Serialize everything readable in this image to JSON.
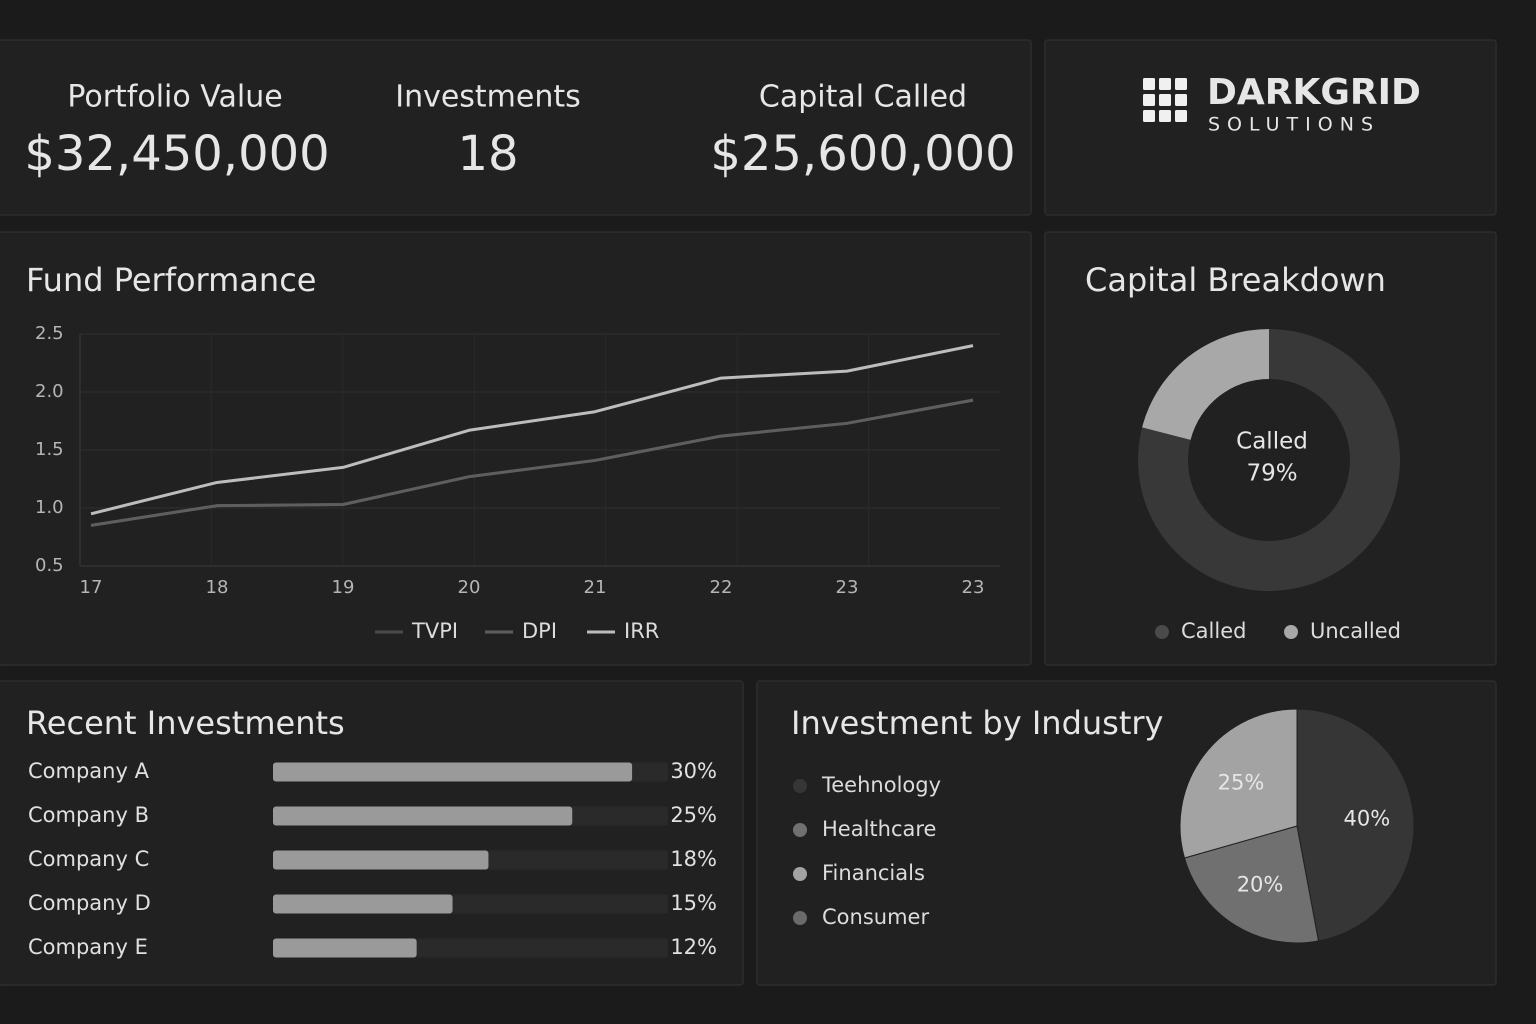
{
  "kpis": [
    {
      "label": "Portfolio Value",
      "value": "$32,450,000"
    },
    {
      "label": "Investments",
      "value": "18"
    },
    {
      "label": "Capital Called",
      "value": "$25,600,000"
    }
  ],
  "brand": {
    "name": "DARKGRID",
    "tagline": "SOLUTIONS"
  },
  "chart_data": [
    {
      "type": "line",
      "title": "Fund Performance",
      "categories": [
        "17",
        "18",
        "19",
        "20",
        "21",
        "22",
        "23",
        "23"
      ],
      "series": [
        {
          "name": "TVPI",
          "color": "#4a4a4a",
          "values": [
            0.85,
            1.02,
            1.03,
            1.27,
            1.41,
            1.62,
            1.73,
            1.93
          ]
        },
        {
          "name": "DPI",
          "color": "#5e5e5e",
          "values": [
            0.85,
            1.02,
            1.03,
            1.27,
            1.41,
            1.62,
            1.73,
            1.93
          ]
        },
        {
          "name": "IRR",
          "color": "#bdbdbd",
          "values": [
            0.95,
            1.22,
            1.35,
            1.67,
            1.83,
            2.12,
            2.18,
            2.4
          ]
        }
      ],
      "ylim": [
        0.5,
        2.5
      ],
      "yticks": [
        0.5,
        {
          "value": 1,
          "label": "1.0"
        },
        1.5,
        {
          "value": 2,
          "label": "2.0"
        },
        2.5
      ],
      "grid": true,
      "legend": "bottom"
    },
    {
      "type": "donut",
      "title": "Capital Breakdown",
      "categories": [
        "Called",
        "Uncalled"
      ],
      "values": [
        79,
        21
      ],
      "value_labels": [
        "79%",
        null
      ],
      "colors": [
        "#383838",
        "#a8a8a8"
      ],
      "legend": "bottom"
    },
    {
      "type": "hbar",
      "title": "Recent Investments",
      "categories": [
        "Company A",
        "Company B",
        "Company C",
        "Company D",
        "Company E"
      ],
      "values": [
        30,
        25,
        18,
        15,
        12
      ],
      "value_labels": [
        "30%",
        "25%",
        "18%",
        "15%",
        "12%"
      ],
      "color": "#9a9a9a",
      "xlim": [
        0,
        33
      ]
    },
    {
      "type": "pie",
      "title": "Investment by Industry",
      "categories": [
        "Teehnology",
        "Healthcare",
        "Financials",
        "Consumer"
      ],
      "values": [
        40,
        20,
        25,
        null
      ],
      "value_labels": [
        "40%",
        "20%",
        "25%",
        null
      ],
      "colors": [
        "#363636",
        "#707070",
        "#a3a3a3",
        "#6a6a6a"
      ],
      "legend": "left"
    }
  ]
}
